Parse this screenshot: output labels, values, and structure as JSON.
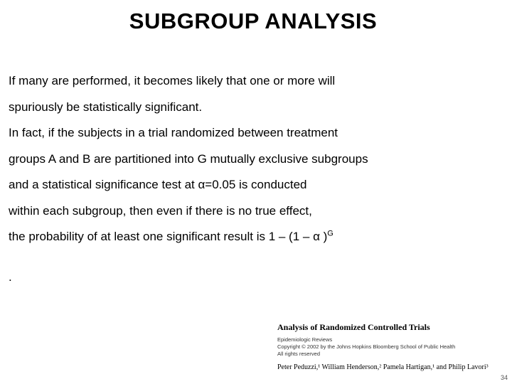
{
  "title": "SUBGROUP ANALYSIS",
  "body": {
    "line1": "If many are performed, it becomes likely that one or more will",
    "line2": "spuriously be statistically significant.",
    "line3": " In fact, if the subjects in a trial randomized between treatment",
    "line4": "groups A and B are partitioned into G mutually exclusive subgroups",
    "line5": "and a statistical  significance  test  at  α=0.05  is  conducted",
    "line6": "within each subgroup, then even if there is no true effect,",
    "line7_a": "the probability of at least one significant result is 1 – (1 –   α )",
    "line7_sup": "G"
  },
  "period": ".",
  "footer": {
    "title": "Analysis of Randomized Controlled Trials",
    "meta1": "Epidemiologic Reviews",
    "meta2": "Copyright © 2002 by the Johns Hopkins Bloomberg School of Public Health",
    "meta3": "All rights reserved",
    "authors_html": "Peter Peduzzi,¹ William Henderson,² Pamela Hartigan,¹ and Philip Lavori³"
  },
  "page_num": "34"
}
